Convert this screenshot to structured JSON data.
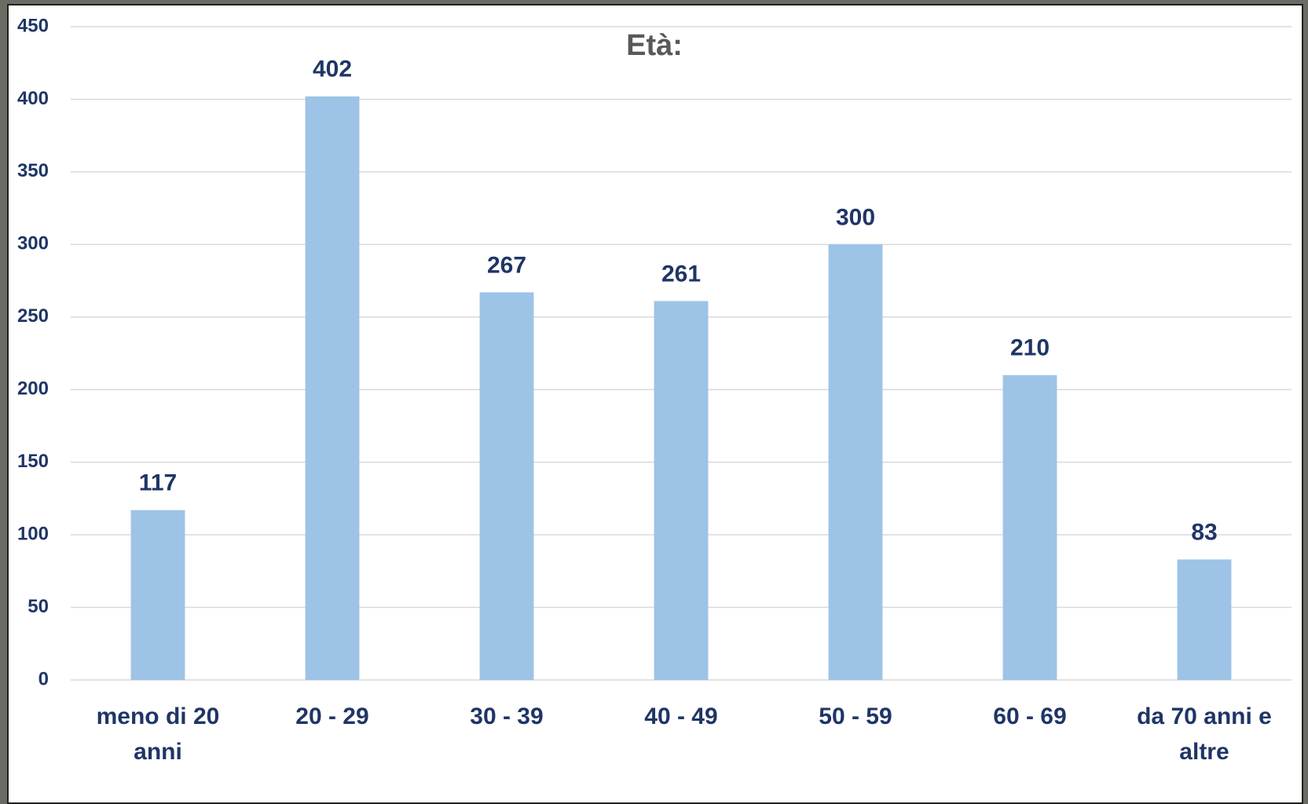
{
  "chart_data": {
    "type": "bar",
    "title": "Età:",
    "categories": [
      "meno di 20 anni",
      "20 - 29",
      "30 - 39",
      "40 - 49",
      "50 - 59",
      "60 - 69",
      "da 70 anni e altre"
    ],
    "values": [
      117,
      402,
      267,
      261,
      300,
      210,
      83
    ],
    "color": "#9dc3e6",
    "ylim": [
      0,
      450
    ],
    "yticks": [
      0,
      50,
      100,
      150,
      200,
      250,
      300,
      350,
      400,
      450
    ],
    "grid": true
  }
}
